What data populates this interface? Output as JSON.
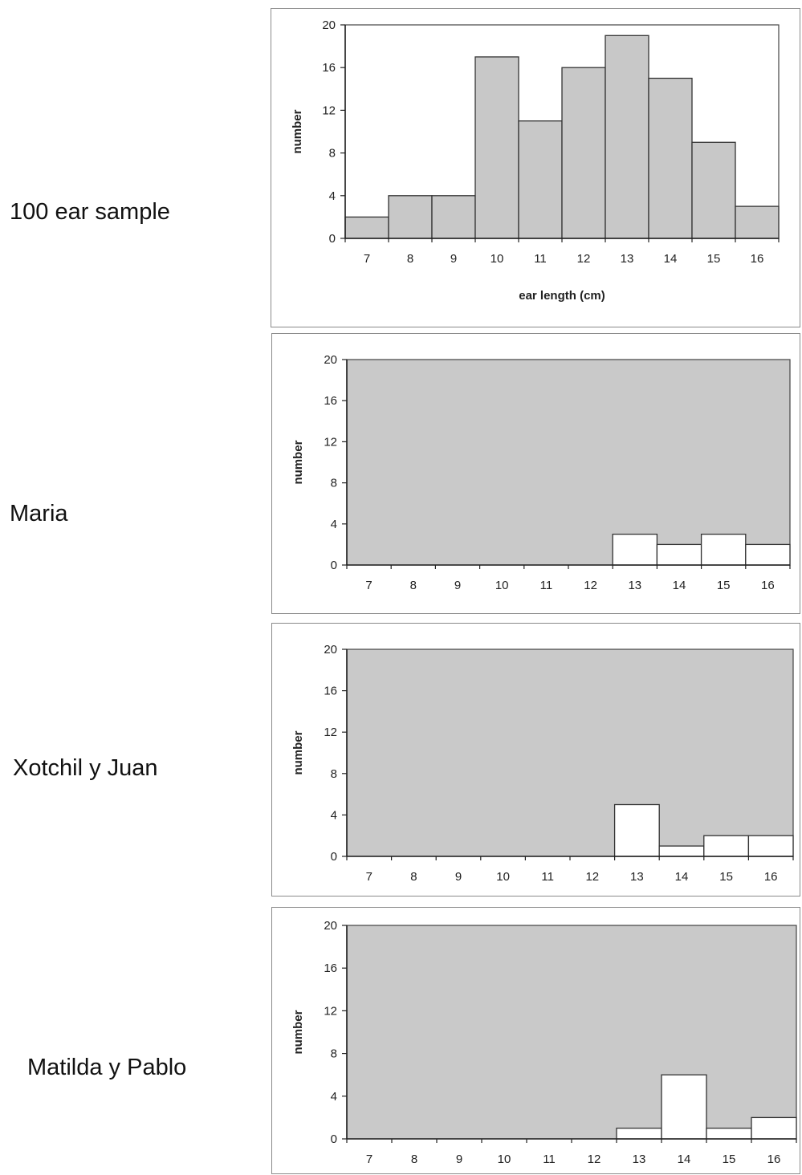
{
  "chart_data": [
    {
      "type": "bar",
      "row_label": "100 ear sample",
      "title": "",
      "xlabel": "ear length (cm)",
      "ylabel": "number",
      "categories": [
        "7",
        "8",
        "9",
        "10",
        "11",
        "12",
        "13",
        "14",
        "15",
        "16"
      ],
      "values": [
        2,
        4,
        4,
        17,
        11,
        16,
        19,
        15,
        9,
        3
      ],
      "ylim": [
        0,
        20
      ],
      "yticks": [
        "0",
        "4",
        "8",
        "12",
        "16",
        "20"
      ],
      "bar_color": "#c8c8c8",
      "plot_bg": "#ffffff",
      "grid": false,
      "legend": "none"
    },
    {
      "type": "bar",
      "row_label": "Maria",
      "title": "",
      "xlabel": "",
      "ylabel": "number",
      "categories": [
        "7",
        "8",
        "9",
        "10",
        "11",
        "12",
        "13",
        "14",
        "15",
        "16"
      ],
      "values": [
        0,
        0,
        0,
        0,
        0,
        0,
        3,
        2,
        3,
        2
      ],
      "ylim": [
        0,
        20
      ],
      "yticks": [
        "0",
        "4",
        "8",
        "12",
        "16",
        "20"
      ],
      "bar_color": "#ffffff",
      "plot_bg": "#c9c9c9",
      "grid": false,
      "legend": "none"
    },
    {
      "type": "bar",
      "row_label": "Xotchil y Juan",
      "title": "",
      "xlabel": "",
      "ylabel": "number",
      "categories": [
        "7",
        "8",
        "9",
        "10",
        "11",
        "12",
        "13",
        "14",
        "15",
        "16"
      ],
      "values": [
        0,
        0,
        0,
        0,
        0,
        0,
        5,
        1,
        2,
        2
      ],
      "ylim": [
        0,
        20
      ],
      "yticks": [
        "0",
        "4",
        "8",
        "12",
        "16",
        "20"
      ],
      "bar_color": "#ffffff",
      "plot_bg": "#c9c9c9",
      "grid": false,
      "legend": "none"
    },
    {
      "type": "bar",
      "row_label": "Matilda y Pablo",
      "title": "",
      "xlabel": "",
      "ylabel": "number",
      "categories": [
        "7",
        "8",
        "9",
        "10",
        "11",
        "12",
        "13",
        "14",
        "15",
        "16"
      ],
      "values": [
        0,
        0,
        0,
        0,
        0,
        0,
        1,
        6,
        1,
        2
      ],
      "ylim": [
        0,
        20
      ],
      "yticks": [
        "0",
        "4",
        "8",
        "12",
        "16",
        "20"
      ],
      "bar_color": "#ffffff",
      "plot_bg": "#c9c9c9",
      "grid": false,
      "legend": "none"
    }
  ]
}
